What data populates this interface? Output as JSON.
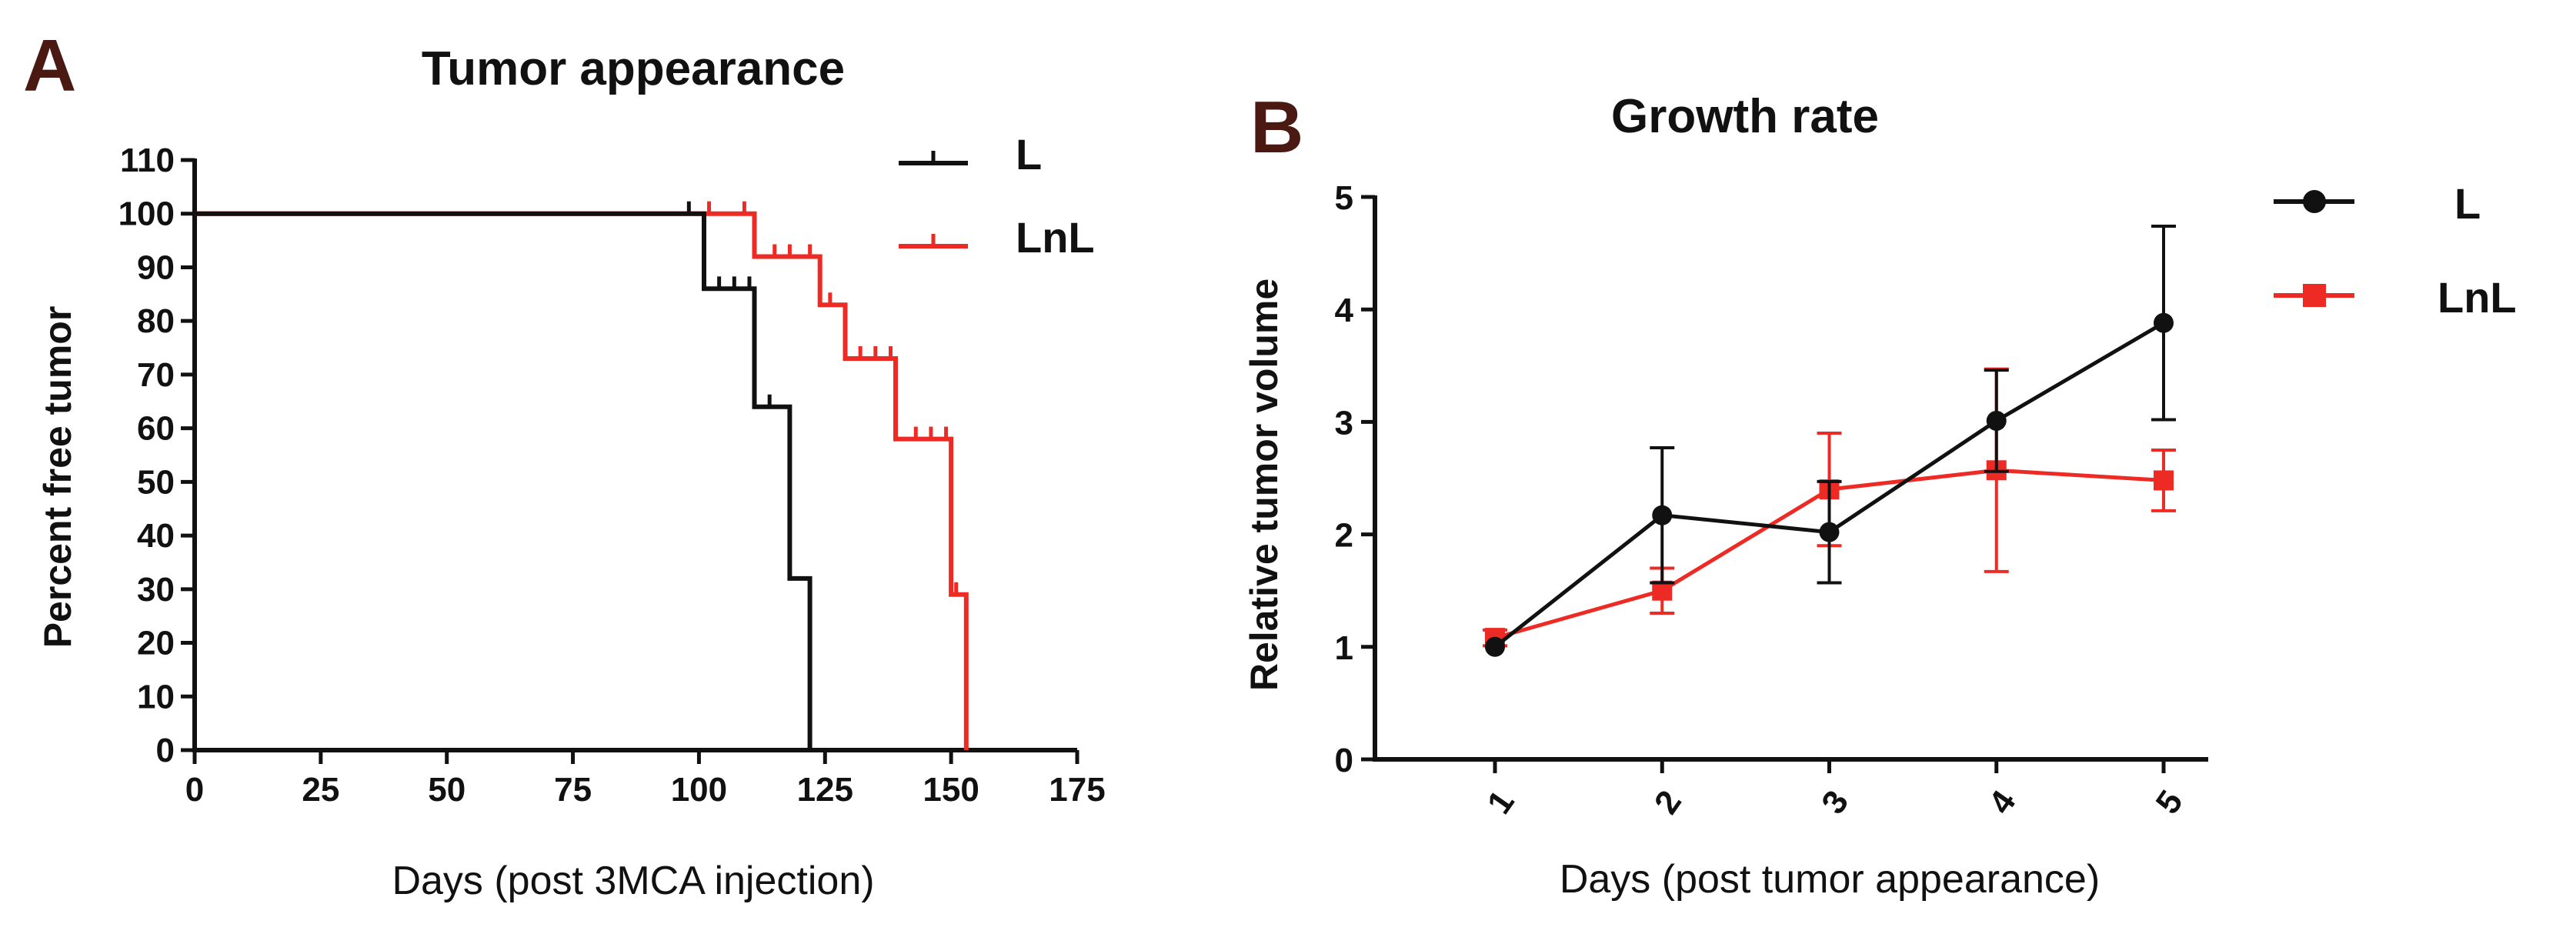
{
  "figure": {
    "panels": [
      "A",
      "B"
    ]
  },
  "chart_data": [
    {
      "type": "line",
      "subtype": "kaplan-meier",
      "panel": "A",
      "title": "Tumor appearance",
      "xlabel": "Days (post 3MCA injection)",
      "ylabel": "Percent free tumor",
      "xlim": [
        0,
        175
      ],
      "ylim": [
        0,
        110
      ],
      "xticks": [
        0,
        25,
        50,
        75,
        100,
        125,
        150,
        175
      ],
      "yticks": [
        0,
        10,
        20,
        30,
        40,
        50,
        60,
        70,
        80,
        90,
        100,
        110
      ],
      "legend_position": "top-right",
      "series": [
        {
          "name": "L",
          "color": "#111111",
          "steps": [
            [
              0,
              100
            ],
            [
              101,
              100
            ],
            [
              101,
              86
            ],
            [
              111,
              86
            ],
            [
              111,
              64
            ],
            [
              118,
              64
            ],
            [
              118,
              32
            ],
            [
              122,
              32
            ],
            [
              122,
              0
            ]
          ],
          "censored": [
            [
              98,
              100
            ],
            [
              104,
              86
            ],
            [
              107,
              86
            ],
            [
              110,
              86
            ],
            [
              114,
              64
            ]
          ]
        },
        {
          "name": "LnL",
          "color": "#ee2a24",
          "steps": [
            [
              0,
              100
            ],
            [
              111,
              100
            ],
            [
              111,
              92
            ],
            [
              124,
              92
            ],
            [
              124,
              83
            ],
            [
              129,
              83
            ],
            [
              129,
              73
            ],
            [
              139,
              73
            ],
            [
              139,
              58
            ],
            [
              150,
              58
            ],
            [
              150,
              29
            ],
            [
              153,
              29
            ],
            [
              153,
              0
            ]
          ],
          "censored": [
            [
              102,
              100
            ],
            [
              109,
              100
            ],
            [
              115,
              92
            ],
            [
              118,
              92
            ],
            [
              122,
              92
            ],
            [
              126,
              83
            ],
            [
              132,
              73
            ],
            [
              135,
              73
            ],
            [
              138,
              73
            ],
            [
              143,
              58
            ],
            [
              146,
              58
            ],
            [
              149,
              58
            ],
            [
              151,
              29
            ]
          ]
        }
      ]
    },
    {
      "type": "line",
      "panel": "B",
      "title": "Growth rate",
      "xlabel": "Days (post tumor appearance)",
      "ylabel": "Relative tumor volume",
      "categories": [
        "1",
        "2",
        "3",
        "4",
        "5"
      ],
      "ylim": [
        0,
        5
      ],
      "yticks": [
        0,
        1,
        2,
        3,
        4,
        5
      ],
      "legend_position": "right",
      "series": [
        {
          "name": "L",
          "color": "#111111",
          "marker": "circle",
          "values": [
            1.0,
            2.17,
            2.02,
            3.01,
            3.88
          ],
          "error": [
            0.0,
            0.6,
            0.45,
            0.45,
            0.86
          ]
        },
        {
          "name": "LnL",
          "color": "#ee2a24",
          "marker": "square",
          "values": [
            1.08,
            1.5,
            2.4,
            2.57,
            2.48
          ],
          "error": [
            0.07,
            0.2,
            0.5,
            0.9,
            0.27
          ]
        }
      ]
    }
  ]
}
